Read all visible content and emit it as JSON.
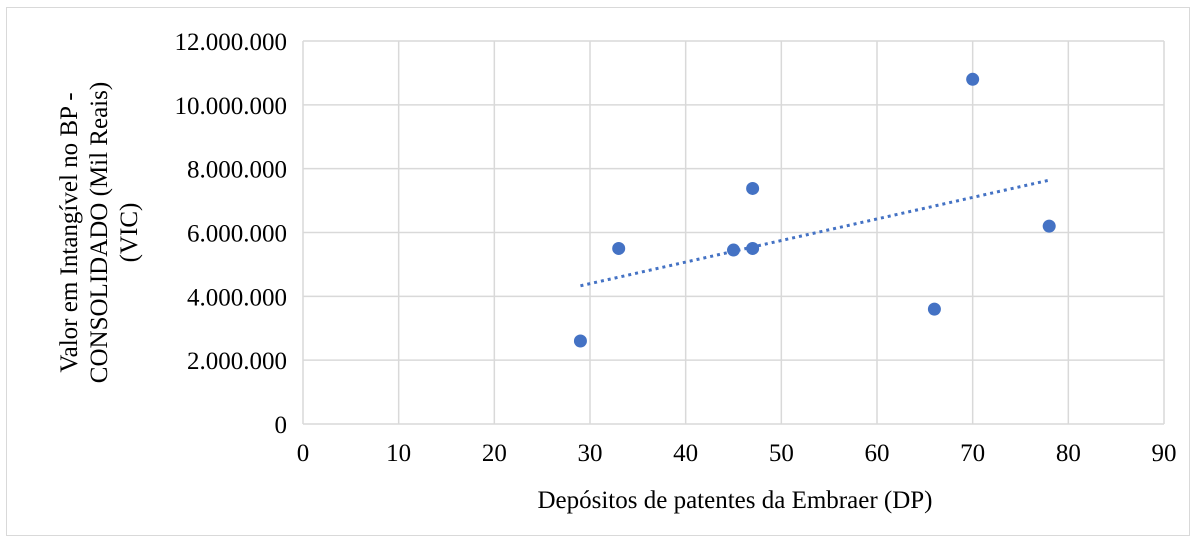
{
  "chart_data": {
    "type": "scatter",
    "title": "",
    "xlabel": "Depósitos de patentes da Embraer (DP)",
    "ylabel_lines": [
      "Valor em Intangível no BP -",
      "CONSOLIDADO (Mil Reais)",
      "(VIC)"
    ],
    "xlim": [
      0,
      90
    ],
    "ylim": [
      0,
      12000000
    ],
    "x_ticks": [
      "0",
      "10",
      "20",
      "30",
      "40",
      "50",
      "60",
      "70",
      "80",
      "90"
    ],
    "y_ticks": [
      "0",
      "2.000.000",
      "4.000.000",
      "6.000.000",
      "8.000.000",
      "10.000.000",
      "12.000.000"
    ],
    "x_tick_values": [
      0,
      10,
      20,
      30,
      40,
      50,
      60,
      70,
      80,
      90
    ],
    "y_tick_values": [
      0,
      2000000,
      4000000,
      6000000,
      8000000,
      10000000,
      12000000
    ],
    "grid": true,
    "legend": "none",
    "series": [
      {
        "x": [
          29,
          33,
          45,
          47,
          47,
          66,
          70,
          78
        ],
        "y": [
          2600000,
          5500000,
          5450000,
          5500000,
          7380000,
          3600000,
          10800000,
          6200000
        ],
        "color": "#4472c4"
      }
    ],
    "trendline": {
      "type": "linear",
      "style": "dotted",
      "color": "#4472c4",
      "x": [
        29,
        78
      ],
      "y": [
        4330000,
        7640000
      ]
    }
  }
}
